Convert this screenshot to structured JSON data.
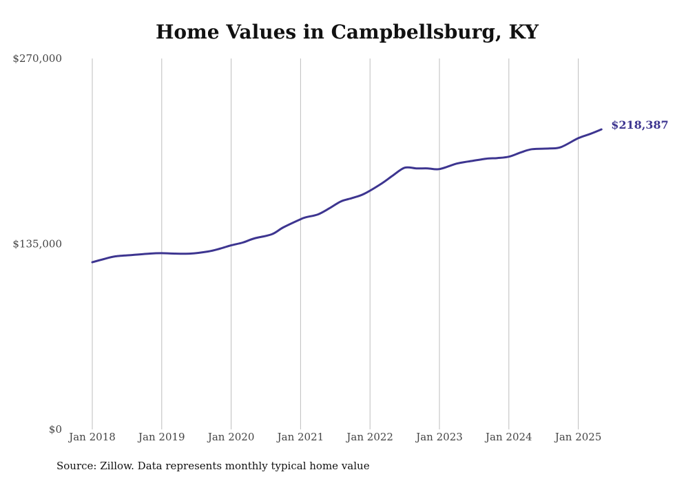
{
  "chart_data": {
    "type": "line",
    "title": "Home Values in Campbellsburg, KY",
    "xlabel": "",
    "ylabel": "",
    "x_ticks": [
      "Jan 2018",
      "Jan 2019",
      "Jan 2020",
      "Jan 2021",
      "Jan 2022",
      "Jan 2023",
      "Jan 2024",
      "Jan 2025"
    ],
    "y_ticks": [
      "$0",
      "$135,000",
      "$270,000"
    ],
    "ylim": [
      0,
      270000
    ],
    "grid": "vertical",
    "line_color": "#3d3590",
    "series": [
      {
        "name": "",
        "end_label": "$218,387",
        "points": [
          [
            "2018-01",
            121700
          ],
          [
            "2018-03",
            124000
          ],
          [
            "2018-05",
            126000
          ],
          [
            "2018-08",
            127000
          ],
          [
            "2018-11",
            128000
          ],
          [
            "2019-01",
            128300
          ],
          [
            "2019-03",
            128000
          ],
          [
            "2019-06",
            128000
          ],
          [
            "2019-09",
            129500
          ],
          [
            "2019-11",
            131500
          ],
          [
            "2020-01",
            134000
          ],
          [
            "2020-03",
            136000
          ],
          [
            "2020-05",
            139000
          ],
          [
            "2020-08",
            142000
          ],
          [
            "2020-10",
            147000
          ],
          [
            "2021-01",
            153000
          ],
          [
            "2021-02",
            154500
          ],
          [
            "2021-04",
            156500
          ],
          [
            "2021-06",
            161000
          ],
          [
            "2021-08",
            166000
          ],
          [
            "2021-10",
            168500
          ],
          [
            "2021-12",
            171500
          ],
          [
            "2022-03",
            179000
          ],
          [
            "2022-05",
            185000
          ],
          [
            "2022-07",
            190500
          ],
          [
            "2022-09",
            190000
          ],
          [
            "2022-11",
            190000
          ],
          [
            "2023-01",
            189500
          ],
          [
            "2023-04",
            193500
          ],
          [
            "2023-06",
            195000
          ],
          [
            "2023-09",
            197000
          ],
          [
            "2023-11",
            197500
          ],
          [
            "2024-01",
            198500
          ],
          [
            "2024-03",
            201500
          ],
          [
            "2024-05",
            204000
          ],
          [
            "2024-08",
            204500
          ],
          [
            "2024-10",
            205500
          ],
          [
            "2025-01",
            212000
          ],
          [
            "2025-03",
            215000
          ],
          [
            "2025-05",
            218387
          ]
        ]
      }
    ]
  },
  "footer": {
    "source": "Source: Zillow. Data represents monthly typical home value"
  }
}
